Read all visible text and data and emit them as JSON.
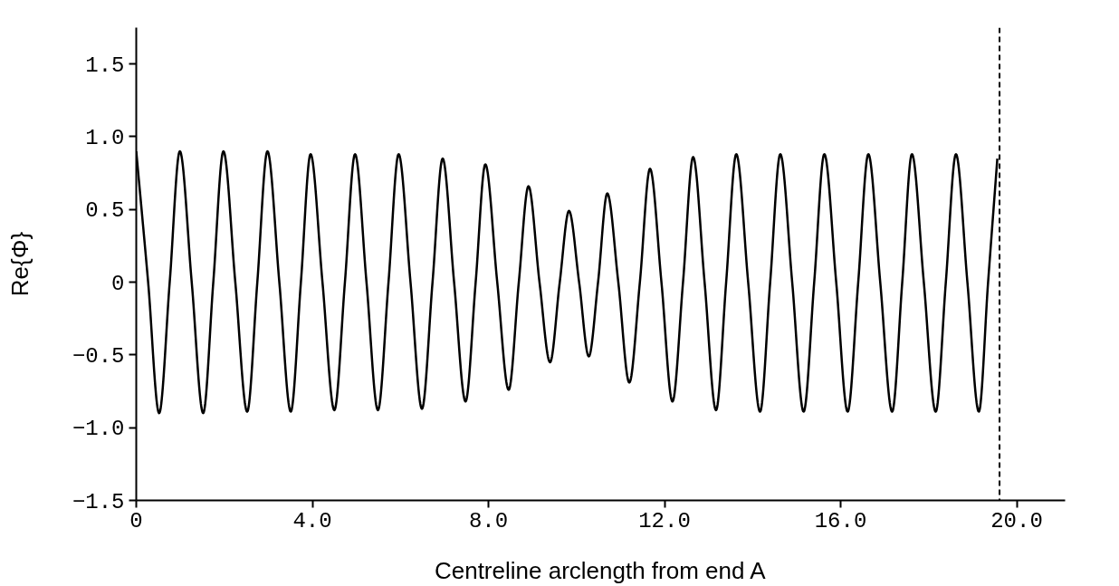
{
  "chart_data": {
    "type": "line",
    "xlabel": "Centreline arclength from end A",
    "ylabel": "Re{Φ}",
    "x": [
      0,
      0.27,
      0.52,
      0.76,
      0.99,
      1.26,
      1.52,
      1.75,
      1.98,
      2.25,
      2.52,
      2.75,
      2.98,
      3.25,
      3.51,
      3.74,
      3.96,
      4.23,
      4.5,
      4.74,
      4.97,
      5.23,
      5.49,
      5.73,
      5.96,
      6.23,
      6.49,
      6.73,
      6.96,
      7.22,
      7.48,
      7.71,
      7.93,
      8.2,
      8.46,
      8.69,
      8.91,
      9.16,
      9.4,
      9.62,
      9.83,
      10.06,
      10.28,
      10.49,
      10.7,
      10.95,
      11.2,
      11.44,
      11.67,
      11.93,
      12.18,
      12.42,
      12.65,
      12.91,
      13.17,
      13.4,
      13.63,
      13.9,
      14.17,
      14.4,
      14.63,
      14.9,
      15.16,
      15.4,
      15.63,
      15.9,
      16.16,
      16.4,
      16.63,
      16.9,
      17.17,
      17.4,
      17.62,
      17.89,
      18.16,
      18.39,
      18.62,
      18.88,
      19.14,
      19.35,
      19.56
    ],
    "series": [
      {
        "color": "#000000",
        "values": [
          0.9,
          0,
          -0.9,
          0,
          0.9,
          0,
          -0.9,
          0,
          0.9,
          0,
          -0.89,
          0,
          0.9,
          0,
          -0.89,
          0,
          0.88,
          0,
          -0.88,
          0,
          0.88,
          0,
          -0.88,
          0,
          0.88,
          0,
          -0.87,
          0,
          0.85,
          0,
          -0.82,
          0,
          0.81,
          0,
          -0.74,
          0,
          0.66,
          0,
          -0.55,
          0,
          0.49,
          0,
          -0.51,
          0,
          0.61,
          0,
          -0.69,
          0,
          0.78,
          0,
          -0.82,
          0,
          0.86,
          0,
          -0.88,
          0,
          0.88,
          0,
          -0.89,
          0,
          0.88,
          0,
          -0.89,
          0,
          0.88,
          0,
          -0.89,
          0,
          0.88,
          0,
          -0.89,
          0,
          0.88,
          0,
          -0.89,
          0,
          0.88,
          0,
          -0.89,
          0,
          0.85
        ]
      }
    ],
    "xlim": [
      0,
      21.1
    ],
    "ylim": [
      -1.5,
      1.75
    ],
    "xticks": [
      0,
      {
        "value": 4,
        "label": "4.0"
      },
      {
        "value": 8,
        "label": "8.0"
      },
      {
        "value": 12,
        "label": "12.0"
      },
      {
        "value": 16,
        "label": "16.0"
      },
      {
        "value": 20,
        "label": "20.0"
      }
    ],
    "yticks": [
      {
        "value": -1.5,
        "label": "−1.5"
      },
      {
        "value": -1,
        "label": "−1.0"
      },
      {
        "value": -0.5,
        "label": "−0.5"
      },
      0,
      0.5,
      {
        "value": 1,
        "label": "1.0"
      },
      1.5
    ],
    "ref_lines": [
      {
        "axis": "x",
        "value": 19.61,
        "color": "#000000",
        "line_style": "dashed"
      }
    ],
    "grid": false,
    "line_style": "solid"
  }
}
